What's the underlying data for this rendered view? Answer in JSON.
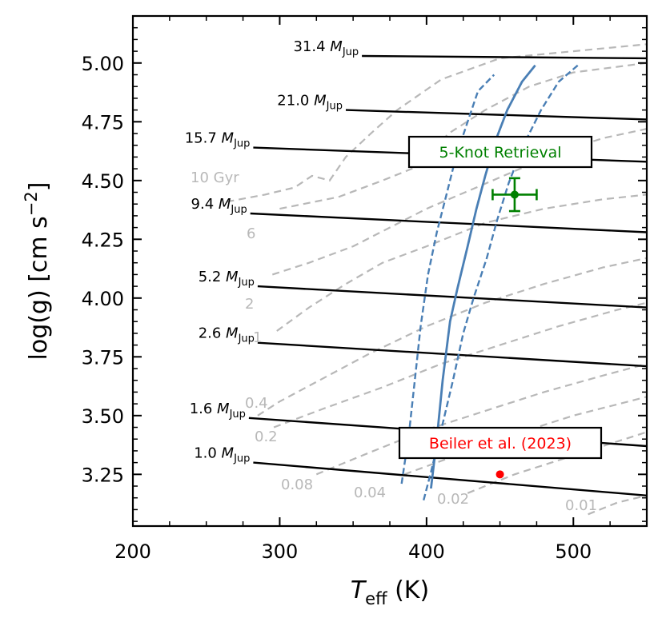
{
  "chart_data": {
    "type": "line",
    "xlabel": "T_eff (K)",
    "xlabel_main": "T",
    "xlabel_sub": "eff",
    "xlabel_unit": " (K)",
    "ylabel": "log(g) [cm s^-2]",
    "ylabel_main": "log(g) [cm s",
    "ylabel_sup": "−2",
    "ylabel_close": "]",
    "xlim": [
      200,
      550
    ],
    "ylim": [
      3.03,
      5.2
    ],
    "x_ticks": [
      200,
      300,
      400,
      500
    ],
    "x_tick_labels": [
      "200",
      "300",
      "400",
      "500"
    ],
    "y_ticks": [
      3.25,
      3.5,
      3.75,
      4.0,
      4.25,
      4.5,
      4.75,
      5.0
    ],
    "y_tick_labels": [
      "3.25",
      "3.50",
      "3.75",
      "4.00",
      "4.25",
      "4.50",
      "4.75",
      "5.00"
    ],
    "mass_tracks": [
      {
        "label": "31.4",
        "unit": "M",
        "sub": "Jup",
        "points": [
          [
            356,
            5.03
          ],
          [
            550,
            5.02
          ]
        ]
      },
      {
        "label": "21.0",
        "unit": "M",
        "sub": "Jup",
        "points": [
          [
            345,
            4.8
          ],
          [
            550,
            4.76
          ]
        ]
      },
      {
        "label": "15.7",
        "unit": "M",
        "sub": "Jup",
        "points": [
          [
            282,
            4.64
          ],
          [
            550,
            4.58
          ]
        ]
      },
      {
        "label": "9.4",
        "unit": "M",
        "sub": "Jup",
        "points": [
          [
            280,
            4.36
          ],
          [
            550,
            4.28
          ]
        ]
      },
      {
        "label": "5.2",
        "unit": "M",
        "sub": "Jup",
        "points": [
          [
            285,
            4.05
          ],
          [
            550,
            3.96
          ]
        ]
      },
      {
        "label": "2.6",
        "unit": "M",
        "sub": "Jup",
        "points": [
          [
            285,
            3.81
          ],
          [
            550,
            3.71
          ]
        ]
      },
      {
        "label": "1.6",
        "unit": "M",
        "sub": "Jup",
        "points": [
          [
            279,
            3.49
          ],
          [
            550,
            3.37
          ]
        ]
      },
      {
        "label": "1.0",
        "unit": "M",
        "sub": "Jup",
        "points": [
          [
            282,
            3.3
          ],
          [
            550,
            3.16
          ]
        ]
      }
    ],
    "isochrones": [
      {
        "label": "10 Gyr",
        "points": [
          [
            264,
            4.41
          ],
          [
            290,
            4.44
          ],
          [
            310,
            4.47
          ],
          [
            322,
            4.52
          ],
          [
            334,
            4.5
          ],
          [
            345,
            4.6
          ],
          [
            362,
            4.7
          ],
          [
            380,
            4.8
          ],
          [
            410,
            4.93
          ],
          [
            450,
            5.02
          ],
          [
            500,
            5.05
          ],
          [
            550,
            5.08
          ]
        ]
      },
      {
        "label": "6",
        "points": [
          [
            300,
            4.38
          ],
          [
            340,
            4.43
          ],
          [
            370,
            4.5
          ],
          [
            390,
            4.55
          ],
          [
            400,
            4.6
          ],
          [
            415,
            4.7
          ],
          [
            440,
            4.8
          ],
          [
            470,
            4.9
          ],
          [
            500,
            4.96
          ],
          [
            550,
            5.0
          ]
        ]
      },
      {
        "label": "2",
        "points": [
          [
            295,
            4.1
          ],
          [
            320,
            4.15
          ],
          [
            350,
            4.22
          ],
          [
            375,
            4.3
          ],
          [
            400,
            4.38
          ],
          [
            430,
            4.46
          ],
          [
            460,
            4.54
          ],
          [
            490,
            4.62
          ],
          [
            520,
            4.68
          ],
          [
            550,
            4.72
          ]
        ]
      },
      {
        "label": "1",
        "points": [
          [
            298,
            3.86
          ],
          [
            320,
            3.96
          ],
          [
            345,
            4.06
          ],
          [
            370,
            4.15
          ],
          [
            400,
            4.22
          ],
          [
            440,
            4.32
          ],
          [
            480,
            4.38
          ],
          [
            520,
            4.42
          ],
          [
            550,
            4.44
          ]
        ]
      },
      {
        "label": "0.4",
        "points": [
          [
            285,
            3.5
          ],
          [
            300,
            3.56
          ],
          [
            330,
            3.66
          ],
          [
            360,
            3.76
          ],
          [
            400,
            3.88
          ],
          [
            440,
            3.98
          ],
          [
            480,
            4.06
          ],
          [
            520,
            4.13
          ],
          [
            550,
            4.17
          ]
        ]
      },
      {
        "label": "0.2",
        "points": [
          [
            296,
            3.45
          ],
          [
            330,
            3.53
          ],
          [
            370,
            3.62
          ],
          [
            410,
            3.72
          ],
          [
            450,
            3.8
          ],
          [
            490,
            3.88
          ],
          [
            530,
            3.95
          ],
          [
            550,
            3.98
          ]
        ]
      },
      {
        "label": "0.08",
        "points": [
          [
            325,
            3.25
          ],
          [
            360,
            3.34
          ],
          [
            400,
            3.44
          ],
          [
            440,
            3.52
          ],
          [
            480,
            3.6
          ],
          [
            520,
            3.67
          ],
          [
            550,
            3.72
          ]
        ]
      },
      {
        "label": "0.04",
        "points": [
          [
            385,
            3.25
          ],
          [
            420,
            3.33
          ],
          [
            460,
            3.42
          ],
          [
            500,
            3.5
          ],
          [
            550,
            3.58
          ]
        ]
      },
      {
        "label": "0.02",
        "points": [
          [
            428,
            3.17
          ],
          [
            460,
            3.25
          ],
          [
            500,
            3.33
          ],
          [
            550,
            3.43
          ]
        ]
      },
      {
        "label": "0.01",
        "points": [
          [
            510,
            3.08
          ],
          [
            530,
            3.13
          ],
          [
            550,
            3.16
          ]
        ]
      }
    ],
    "retrieval_band": {
      "label": "5-Knot Retrieval",
      "median": [
        [
          403,
          3.19
        ],
        [
          407,
          3.4
        ],
        [
          411,
          3.65
        ],
        [
          416,
          3.9
        ],
        [
          421,
          4.04
        ],
        [
          428,
          4.22
        ],
        [
          434,
          4.38
        ],
        [
          440,
          4.52
        ],
        [
          447,
          4.67
        ],
        [
          455,
          4.8
        ],
        [
          465,
          4.92
        ],
        [
          474,
          4.99
        ]
      ],
      "lower": [
        [
          383,
          3.21
        ],
        [
          388,
          3.42
        ],
        [
          392,
          3.65
        ],
        [
          396,
          3.88
        ],
        [
          401,
          4.1
        ],
        [
          407,
          4.28
        ],
        [
          414,
          4.45
        ],
        [
          420,
          4.6
        ],
        [
          428,
          4.75
        ],
        [
          435,
          4.88
        ],
        [
          446,
          4.95
        ]
      ],
      "upper": [
        [
          398,
          3.14
        ],
        [
          403,
          3.26
        ],
        [
          410,
          3.44
        ],
        [
          418,
          3.65
        ],
        [
          425,
          3.85
        ],
        [
          432,
          4.0
        ],
        [
          441,
          4.17
        ],
        [
          448,
          4.33
        ],
        [
          456,
          4.49
        ],
        [
          466,
          4.65
        ],
        [
          478,
          4.8
        ],
        [
          490,
          4.92
        ],
        [
          503,
          4.99
        ]
      ]
    },
    "points": [
      {
        "name": "5-Knot Retrieval",
        "x": 460,
        "y": 4.44,
        "xerr": 15,
        "yerr": 0.07,
        "color": "#008000"
      },
      {
        "name": "Beiler et al. (2023)",
        "x": 450,
        "y": 3.25,
        "color": "#ff0000"
      }
    ],
    "colors": {
      "tracks": "#000000",
      "isochrones": "#b8b8b8",
      "band": "#4a7fb5",
      "retrieval": "#008000",
      "beiler": "#ff0000"
    }
  }
}
